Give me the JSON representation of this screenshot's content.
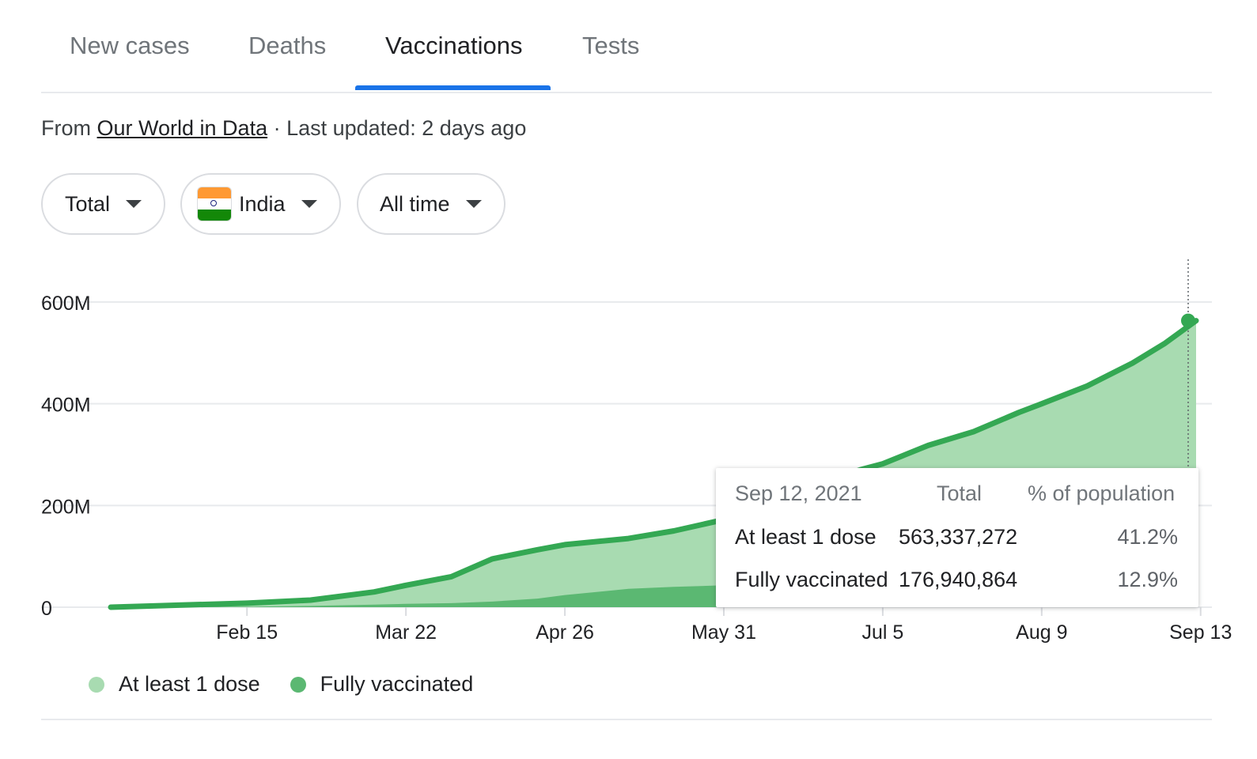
{
  "tabs": [
    {
      "label": "New cases",
      "active": false
    },
    {
      "label": "Deaths",
      "active": false
    },
    {
      "label": "Vaccinations",
      "active": true
    },
    {
      "label": "Tests",
      "active": false
    }
  ],
  "source": {
    "prefix": "From",
    "link": "Our World in Data",
    "suffix": "· Last updated: 2 days ago"
  },
  "filters": {
    "metric": "Total",
    "country": "India",
    "range": "All time"
  },
  "colors": {
    "dose1_fill": "#a8dbb1",
    "full_fill": "#5bb872",
    "line": "#34a853",
    "tab_accent": "#1a73e8"
  },
  "icons": {
    "country_flag": "india-flag-icon",
    "dropdown": "caret-down-icon"
  },
  "tooltip": {
    "date": "Sep 12, 2021",
    "col_total": "Total",
    "col_pct": "% of population",
    "rows": [
      {
        "label": "At least 1 dose",
        "total": "563,337,272",
        "pct": "41.2%"
      },
      {
        "label": "Fully vaccinated",
        "total": "176,940,864",
        "pct": "12.9%"
      }
    ]
  },
  "legend": {
    "dose1": "At least 1 dose",
    "full": "Fully vaccinated"
  },
  "chart_data": {
    "type": "area",
    "title": "",
    "xlabel": "",
    "ylabel": "",
    "x_ticks": [
      "Feb 15",
      "Mar 22",
      "Apr 26",
      "May 31",
      "Jul 5",
      "Aug 9",
      "Sep 13"
    ],
    "y_ticks": [
      "0",
      "200M",
      "400M",
      "600M"
    ],
    "ylim": [
      0,
      600000000
    ],
    "grid": true,
    "legend_position": "bottom-left",
    "x": [
      "2021-01-16",
      "2021-01-31",
      "2021-02-15",
      "2021-03-01",
      "2021-03-15",
      "2021-03-22",
      "2021-04-01",
      "2021-04-10",
      "2021-04-20",
      "2021-04-26",
      "2021-05-10",
      "2021-05-20",
      "2021-05-31",
      "2021-06-10",
      "2021-06-20",
      "2021-06-30",
      "2021-07-05",
      "2021-07-15",
      "2021-07-25",
      "2021-08-04",
      "2021-08-09",
      "2021-08-19",
      "2021-08-29",
      "2021-09-05",
      "2021-09-12"
    ],
    "series": [
      {
        "name": "At least 1 dose",
        "values": [
          0,
          4000000,
          8000000,
          14000000,
          30000000,
          43000000,
          60000000,
          95000000,
          113000000,
          123000000,
          135000000,
          150000000,
          172000000,
          200000000,
          240000000,
          270000000,
          282000000,
          318000000,
          345000000,
          383000000,
          400000000,
          435000000,
          480000000,
          518000000,
          563337272
        ]
      },
      {
        "name": "Fully vaccinated",
        "values": [
          0,
          0,
          1000000,
          2500000,
          5000000,
          6500000,
          8000000,
          11000000,
          17000000,
          24000000,
          36000000,
          40000000,
          43000000,
          47000000,
          55000000,
          63000000,
          70000000,
          82000000,
          95000000,
          110000000,
          118000000,
          132000000,
          148000000,
          162000000,
          176940864
        ]
      }
    ],
    "highlight": {
      "date": "2021-09-12",
      "dose1": 563337272,
      "full": 176940864
    }
  }
}
